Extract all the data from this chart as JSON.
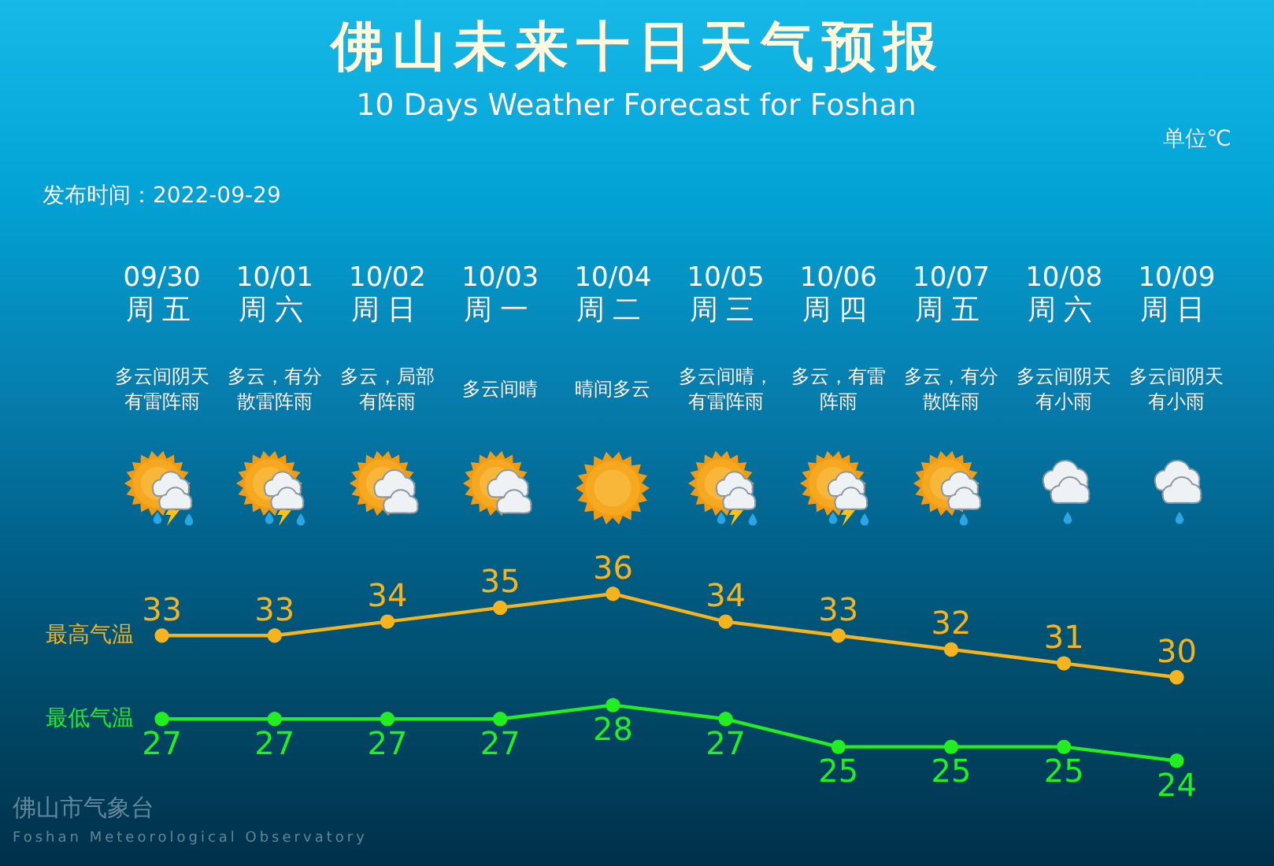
{
  "chart_data": {
    "type": "line",
    "title": "佛山未来十日天气预报",
    "subtitle": "10 Days Weather Forecast for Foshan",
    "categories": [
      "09/30",
      "10/01",
      "10/02",
      "10/03",
      "10/04",
      "10/05",
      "10/06",
      "10/07",
      "10/08",
      "10/09"
    ],
    "series": [
      {
        "name": "最高气温",
        "color": "#f5b41e",
        "values": [
          33,
          33,
          34,
          35,
          36,
          34,
          33,
          32,
          31,
          30
        ]
      },
      {
        "name": "最低气温",
        "color": "#22ee22",
        "values": [
          27,
          27,
          27,
          27,
          28,
          27,
          25,
          25,
          25,
          24
        ]
      }
    ],
    "tick_labels": "x",
    "grid": false,
    "legend": false,
    "marker": "circle",
    "line_style": "solid",
    "data_labels": true,
    "annotations": [
      "单位℃",
      "发布时间：2022-09-29",
      "周五",
      "周六",
      "周日",
      "周一",
      "周二",
      "周三",
      "周四",
      "周五",
      "周六",
      "周日",
      "多云间阴天有雷阵雨",
      "多云，有分散雷阵雨",
      "多云，局部有阵雨",
      "多云间晴",
      "晴间多云",
      "多云间晴，有雷阵雨",
      "多云，有雷阵雨",
      "多云，有分散阵雨",
      "多云间阴天有小雨",
      "多云间阴天有小雨",
      "佛山市气象台",
      "Foshan Meteorological Observatory"
    ]
  }
}
